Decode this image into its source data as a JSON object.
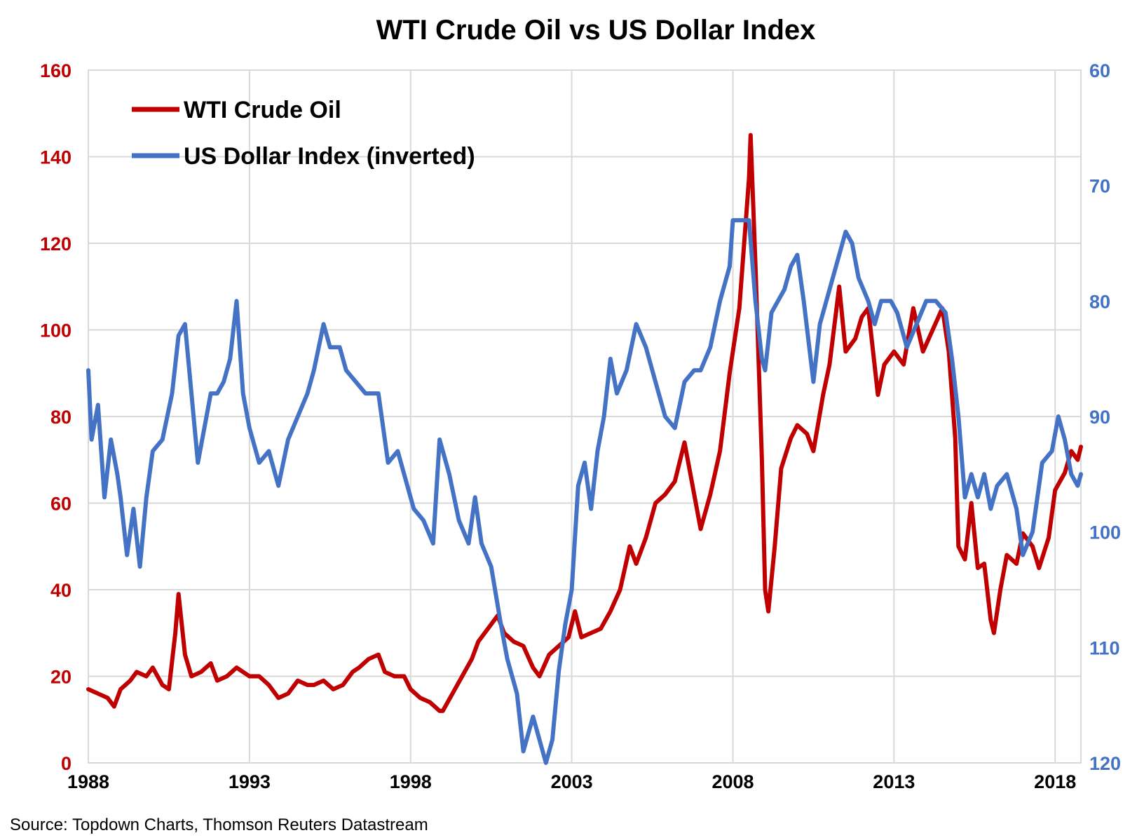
{
  "chart_data": {
    "type": "line",
    "title": "WTI Crude Oil vs US Dollar Index",
    "source": "Source: Topdown Charts, Thomson Reuters Datastream",
    "x_ticks": [
      "1988",
      "1993",
      "1998",
      "2003",
      "2008",
      "2013",
      "2018"
    ],
    "x_range": [
      1988,
      2018.8
    ],
    "y_left": {
      "range": [
        0,
        160
      ],
      "ticks": [
        "0",
        "20",
        "40",
        "60",
        "80",
        "100",
        "120",
        "140",
        "160"
      ],
      "color": "#c00000"
    },
    "y_right": {
      "range": [
        120,
        60
      ],
      "inverted": true,
      "ticks": [
        "60",
        "70",
        "80",
        "90",
        "100",
        "110",
        "120"
      ],
      "color": "#4472c4"
    },
    "grid": true,
    "legend_position": "top-left",
    "series": [
      {
        "name": "WTI Crude Oil",
        "axis": "left",
        "color": "#c00000",
        "points": [
          [
            1988.0,
            17
          ],
          [
            1988.3,
            16
          ],
          [
            1988.6,
            15
          ],
          [
            1988.8,
            13
          ],
          [
            1989.0,
            17
          ],
          [
            1989.3,
            19
          ],
          [
            1989.5,
            21
          ],
          [
            1989.8,
            20
          ],
          [
            1990.0,
            22
          ],
          [
            1990.3,
            18
          ],
          [
            1990.5,
            17
          ],
          [
            1990.7,
            30
          ],
          [
            1990.8,
            39
          ],
          [
            1991.0,
            25
          ],
          [
            1991.2,
            20
          ],
          [
            1991.5,
            21
          ],
          [
            1991.8,
            23
          ],
          [
            1992.0,
            19
          ],
          [
            1992.3,
            20
          ],
          [
            1992.6,
            22
          ],
          [
            1993.0,
            20
          ],
          [
            1993.3,
            20
          ],
          [
            1993.6,
            18
          ],
          [
            1993.9,
            15
          ],
          [
            1994.2,
            16
          ],
          [
            1994.5,
            19
          ],
          [
            1994.8,
            18
          ],
          [
            1995.0,
            18
          ],
          [
            1995.3,
            19
          ],
          [
            1995.6,
            17
          ],
          [
            1995.9,
            18
          ],
          [
            1996.2,
            21
          ],
          [
            1996.4,
            22
          ],
          [
            1996.7,
            24
          ],
          [
            1997.0,
            25
          ],
          [
            1997.2,
            21
          ],
          [
            1997.5,
            20
          ],
          [
            1997.8,
            20
          ],
          [
            1998.0,
            17
          ],
          [
            1998.3,
            15
          ],
          [
            1998.6,
            14
          ],
          [
            1998.9,
            12
          ],
          [
            1999.0,
            12
          ],
          [
            1999.3,
            16
          ],
          [
            1999.6,
            20
          ],
          [
            1999.9,
            24
          ],
          [
            2000.1,
            28
          ],
          [
            2000.4,
            31
          ],
          [
            2000.7,
            34
          ],
          [
            2000.9,
            30
          ],
          [
            2001.2,
            28
          ],
          [
            2001.5,
            27
          ],
          [
            2001.8,
            22
          ],
          [
            2002.0,
            20
          ],
          [
            2002.3,
            25
          ],
          [
            2002.6,
            27
          ],
          [
            2002.9,
            29
          ],
          [
            2003.1,
            35
          ],
          [
            2003.3,
            29
          ],
          [
            2003.6,
            30
          ],
          [
            2003.9,
            31
          ],
          [
            2004.2,
            35
          ],
          [
            2004.5,
            40
          ],
          [
            2004.8,
            50
          ],
          [
            2005.0,
            46
          ],
          [
            2005.3,
            52
          ],
          [
            2005.6,
            60
          ],
          [
            2005.9,
            62
          ],
          [
            2006.2,
            65
          ],
          [
            2006.5,
            74
          ],
          [
            2006.8,
            62
          ],
          [
            2007.0,
            54
          ],
          [
            2007.3,
            62
          ],
          [
            2007.6,
            72
          ],
          [
            2007.9,
            90
          ],
          [
            2008.0,
            95
          ],
          [
            2008.2,
            105
          ],
          [
            2008.4,
            125
          ],
          [
            2008.5,
            135
          ],
          [
            2008.55,
            145
          ],
          [
            2008.7,
            115
          ],
          [
            2008.9,
            70
          ],
          [
            2009.0,
            40
          ],
          [
            2009.1,
            35
          ],
          [
            2009.3,
            50
          ],
          [
            2009.5,
            68
          ],
          [
            2009.8,
            75
          ],
          [
            2010.0,
            78
          ],
          [
            2010.3,
            76
          ],
          [
            2010.5,
            72
          ],
          [
            2010.8,
            85
          ],
          [
            2011.0,
            92
          ],
          [
            2011.3,
            110
          ],
          [
            2011.5,
            95
          ],
          [
            2011.8,
            98
          ],
          [
            2012.0,
            103
          ],
          [
            2012.2,
            105
          ],
          [
            2012.5,
            85
          ],
          [
            2012.7,
            92
          ],
          [
            2013.0,
            95
          ],
          [
            2013.3,
            92
          ],
          [
            2013.6,
            105
          ],
          [
            2013.9,
            95
          ],
          [
            2014.2,
            100
          ],
          [
            2014.5,
            105
          ],
          [
            2014.7,
            95
          ],
          [
            2014.9,
            75
          ],
          [
            2015.0,
            50
          ],
          [
            2015.2,
            47
          ],
          [
            2015.4,
            60
          ],
          [
            2015.6,
            45
          ],
          [
            2015.8,
            46
          ],
          [
            2016.0,
            33
          ],
          [
            2016.1,
            30
          ],
          [
            2016.3,
            40
          ],
          [
            2016.5,
            48
          ],
          [
            2016.8,
            46
          ],
          [
            2017.0,
            53
          ],
          [
            2017.3,
            50
          ],
          [
            2017.5,
            45
          ],
          [
            2017.8,
            52
          ],
          [
            2018.0,
            63
          ],
          [
            2018.3,
            67
          ],
          [
            2018.5,
            72
          ],
          [
            2018.7,
            70
          ],
          [
            2018.8,
            73
          ]
        ]
      },
      {
        "name": "US Dollar Index (inverted)",
        "axis": "right",
        "color": "#4472c4",
        "points": [
          [
            1988.0,
            86
          ],
          [
            1988.1,
            92
          ],
          [
            1988.3,
            89
          ],
          [
            1988.5,
            97
          ],
          [
            1988.7,
            92
          ],
          [
            1988.9,
            95
          ],
          [
            1989.0,
            97
          ],
          [
            1989.2,
            102
          ],
          [
            1989.4,
            98
          ],
          [
            1989.6,
            103
          ],
          [
            1989.8,
            97
          ],
          [
            1990.0,
            93
          ],
          [
            1990.3,
            92
          ],
          [
            1990.6,
            88
          ],
          [
            1990.8,
            83
          ],
          [
            1991.0,
            82
          ],
          [
            1991.2,
            88
          ],
          [
            1991.4,
            94
          ],
          [
            1991.6,
            91
          ],
          [
            1991.8,
            88
          ],
          [
            1992.0,
            88
          ],
          [
            1992.2,
            87
          ],
          [
            1992.4,
            85
          ],
          [
            1992.6,
            80
          ],
          [
            1992.8,
            88
          ],
          [
            1993.0,
            91
          ],
          [
            1993.3,
            94
          ],
          [
            1993.6,
            93
          ],
          [
            1993.9,
            96
          ],
          [
            1994.2,
            92
          ],
          [
            1994.5,
            90
          ],
          [
            1994.8,
            88
          ],
          [
            1995.0,
            86
          ],
          [
            1995.3,
            82
          ],
          [
            1995.5,
            84
          ],
          [
            1995.8,
            84
          ],
          [
            1996.0,
            86
          ],
          [
            1996.3,
            87
          ],
          [
            1996.6,
            88
          ],
          [
            1997.0,
            88
          ],
          [
            1997.3,
            94
          ],
          [
            1997.6,
            93
          ],
          [
            1997.9,
            96
          ],
          [
            1998.1,
            98
          ],
          [
            1998.4,
            99
          ],
          [
            1998.7,
            101
          ],
          [
            1998.9,
            92
          ],
          [
            1999.2,
            95
          ],
          [
            1999.5,
            99
          ],
          [
            1999.8,
            101
          ],
          [
            2000.0,
            97
          ],
          [
            2000.2,
            101
          ],
          [
            2000.5,
            103
          ],
          [
            2000.8,
            108
          ],
          [
            2001.0,
            111
          ],
          [
            2001.3,
            114
          ],
          [
            2001.5,
            119
          ],
          [
            2001.8,
            116
          ],
          [
            2002.0,
            118
          ],
          [
            2002.2,
            120
          ],
          [
            2002.4,
            118
          ],
          [
            2002.6,
            112
          ],
          [
            2002.8,
            108
          ],
          [
            2003.0,
            105
          ],
          [
            2003.2,
            96
          ],
          [
            2003.4,
            94
          ],
          [
            2003.6,
            98
          ],
          [
            2003.8,
            93
          ],
          [
            2004.0,
            90
          ],
          [
            2004.2,
            85
          ],
          [
            2004.4,
            88
          ],
          [
            2004.7,
            86
          ],
          [
            2005.0,
            82
          ],
          [
            2005.3,
            84
          ],
          [
            2005.6,
            87
          ],
          [
            2005.9,
            90
          ],
          [
            2006.2,
            91
          ],
          [
            2006.5,
            87
          ],
          [
            2006.8,
            86
          ],
          [
            2007.0,
            86
          ],
          [
            2007.3,
            84
          ],
          [
            2007.6,
            80
          ],
          [
            2007.9,
            77
          ],
          [
            2008.0,
            73
          ],
          [
            2008.3,
            73
          ],
          [
            2008.5,
            73
          ],
          [
            2008.7,
            80
          ],
          [
            2008.9,
            85
          ],
          [
            2009.0,
            86
          ],
          [
            2009.2,
            81
          ],
          [
            2009.4,
            80
          ],
          [
            2009.6,
            79
          ],
          [
            2009.8,
            77
          ],
          [
            2010.0,
            76
          ],
          [
            2010.2,
            80
          ],
          [
            2010.5,
            87
          ],
          [
            2010.7,
            82
          ],
          [
            2011.0,
            79
          ],
          [
            2011.3,
            76
          ],
          [
            2011.5,
            74
          ],
          [
            2011.7,
            75
          ],
          [
            2011.9,
            78
          ],
          [
            2012.2,
            80
          ],
          [
            2012.4,
            82
          ],
          [
            2012.6,
            80
          ],
          [
            2012.9,
            80
          ],
          [
            2013.1,
            81
          ],
          [
            2013.4,
            84
          ],
          [
            2013.7,
            82
          ],
          [
            2014.0,
            80
          ],
          [
            2014.3,
            80
          ],
          [
            2014.6,
            81
          ],
          [
            2014.8,
            85
          ],
          [
            2015.0,
            90
          ],
          [
            2015.2,
            97
          ],
          [
            2015.4,
            95
          ],
          [
            2015.6,
            97
          ],
          [
            2015.8,
            95
          ],
          [
            2016.0,
            98
          ],
          [
            2016.2,
            96
          ],
          [
            2016.5,
            95
          ],
          [
            2016.8,
            98
          ],
          [
            2017.0,
            102
          ],
          [
            2017.3,
            100
          ],
          [
            2017.6,
            94
          ],
          [
            2017.9,
            93
          ],
          [
            2018.1,
            90
          ],
          [
            2018.3,
            92
          ],
          [
            2018.5,
            95
          ],
          [
            2018.7,
            96
          ],
          [
            2018.8,
            95
          ]
        ]
      }
    ]
  }
}
